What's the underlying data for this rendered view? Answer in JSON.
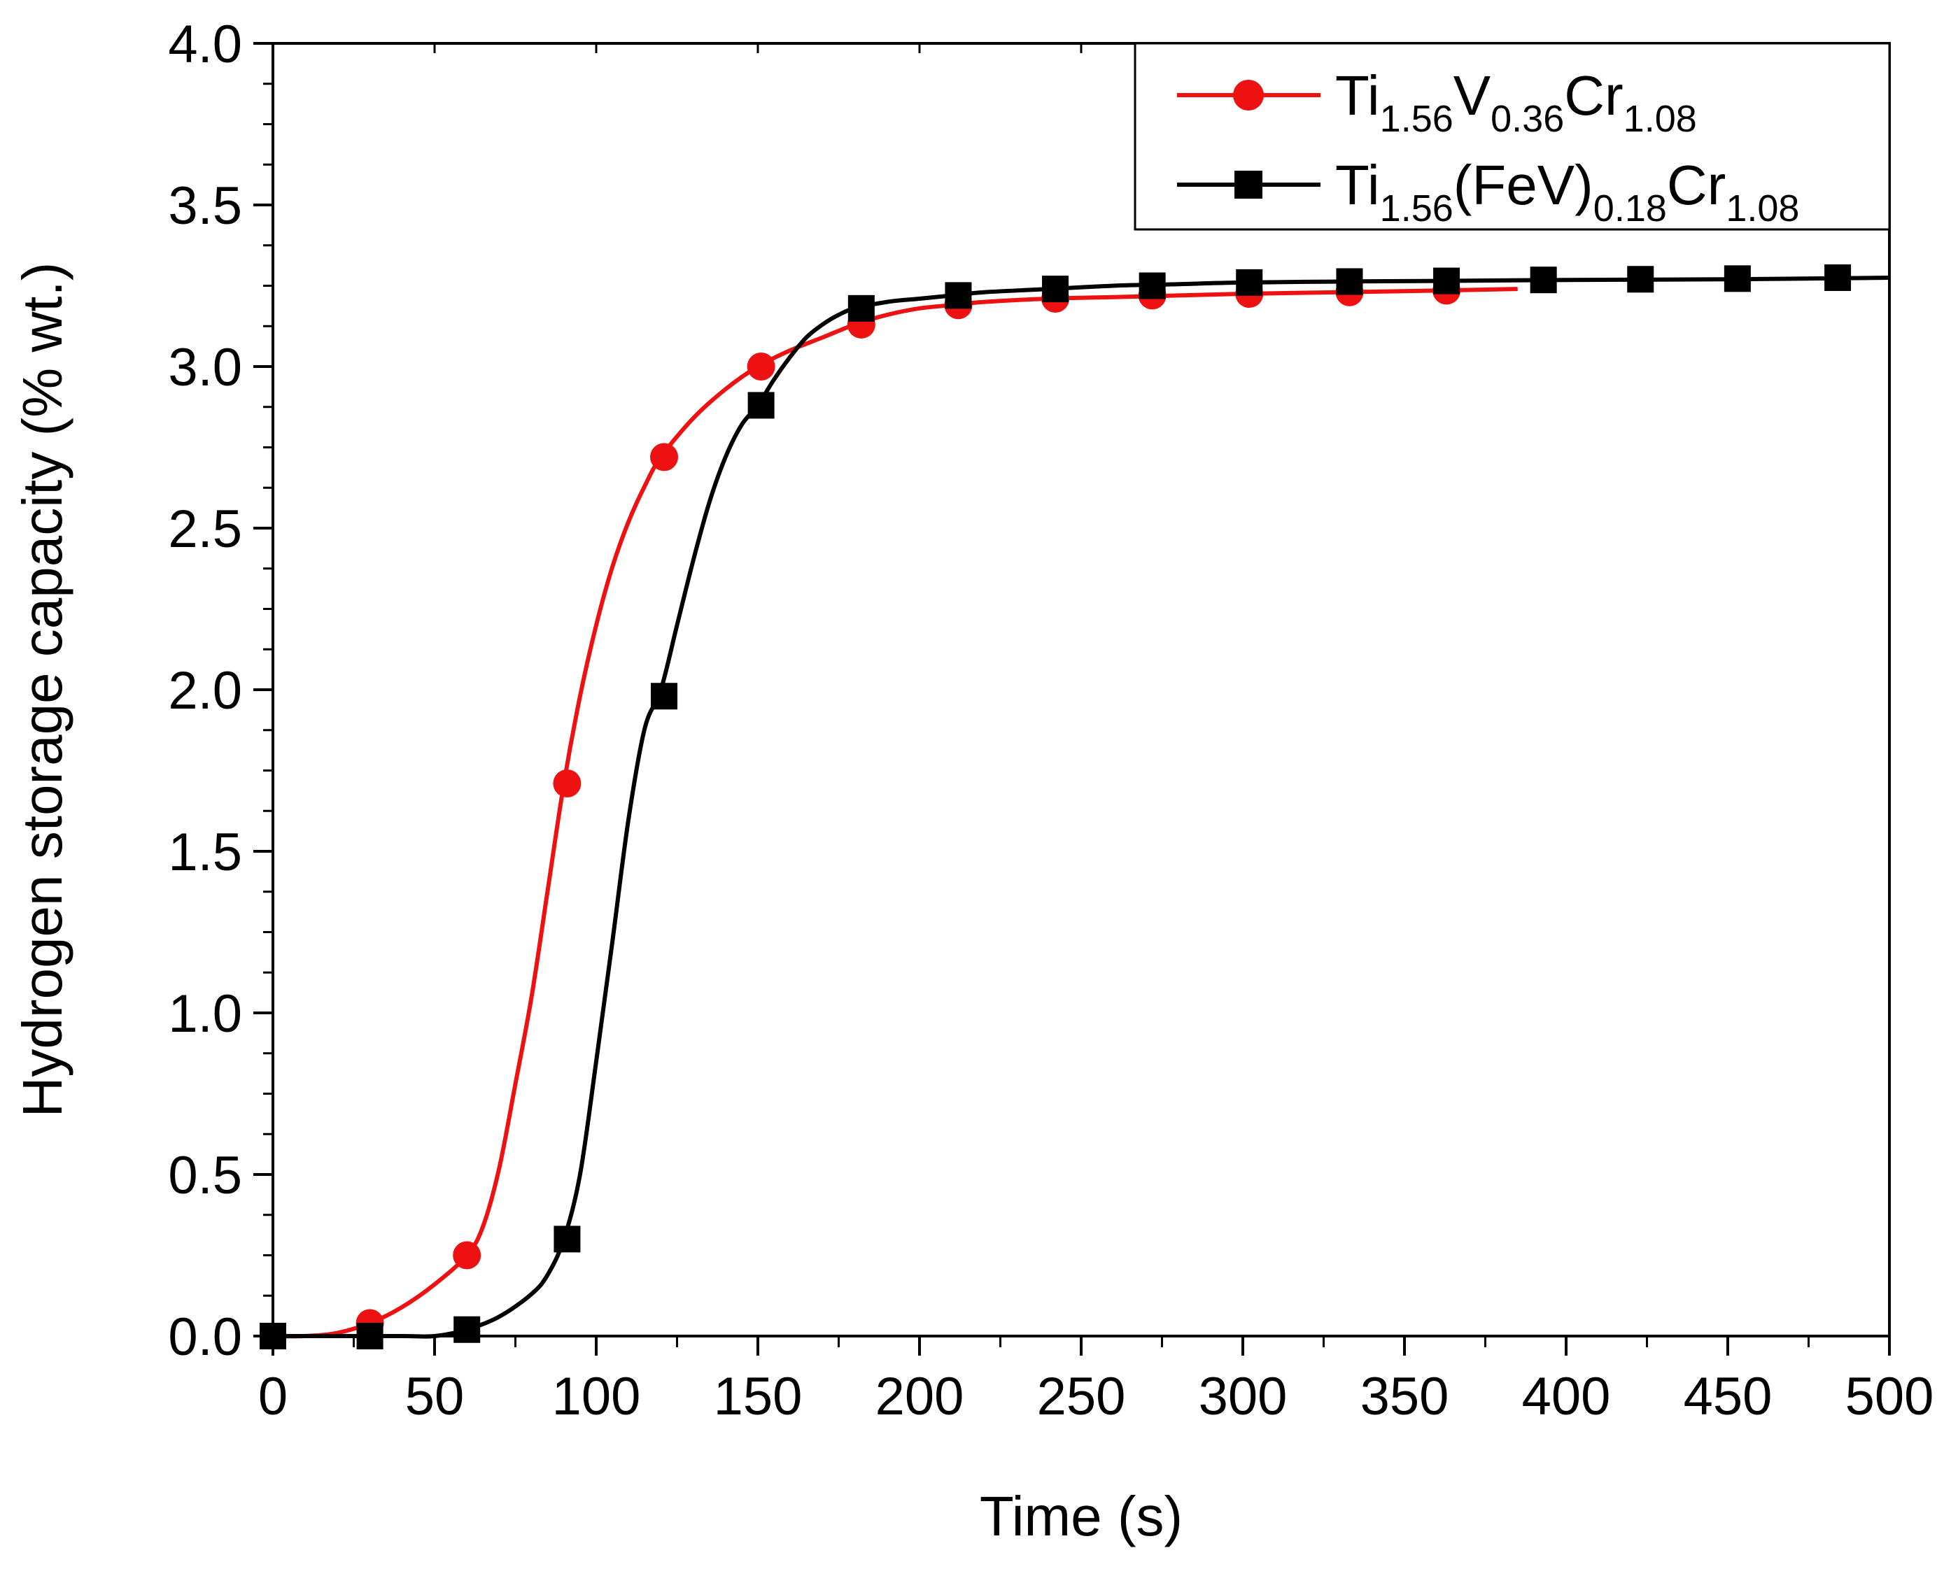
{
  "chart_data": {
    "type": "line",
    "title": "",
    "xlabel": "Time (s)",
    "ylabel": "Hydrogen storage capacity (% wt.)",
    "xlim": [
      0,
      500
    ],
    "ylim": [
      0.0,
      4.0
    ],
    "x_ticks": [
      "0",
      "50",
      "100",
      "150",
      "200",
      "250",
      "300",
      "350",
      "400",
      "450",
      "500"
    ],
    "y_ticks": [
      "0.0",
      "0.5",
      "1.0",
      "1.5",
      "2.0",
      "2.5",
      "3.0",
      "3.5",
      "4.0"
    ],
    "legend_position": "top-right",
    "series": [
      {
        "name": "Ti1.56V0.36Cr1.08",
        "legend_parts": [
          {
            "text": "Ti",
            "sub": false
          },
          {
            "text": "1.56",
            "sub": true
          },
          {
            "text": "V",
            "sub": false
          },
          {
            "text": "0.36",
            "sub": true
          },
          {
            "text": "Cr",
            "sub": false
          },
          {
            "text": "1.08",
            "sub": true
          }
        ],
        "color": "#ee1111",
        "marker": "circle",
        "curve_x": [
          0,
          10,
          20,
          30,
          40,
          50,
          60,
          65,
          70,
          75,
          80,
          85,
          90,
          95,
          100,
          105,
          110,
          115,
          120,
          130,
          140,
          150,
          160,
          170,
          180,
          190,
          200,
          210,
          220,
          240,
          260,
          280,
          300,
          330,
          360,
          385
        ],
        "curve_y": [
          0.0,
          0.0,
          0.01,
          0.04,
          0.09,
          0.16,
          0.25,
          0.34,
          0.52,
          0.78,
          1.05,
          1.38,
          1.71,
          1.98,
          2.2,
          2.38,
          2.52,
          2.63,
          2.72,
          2.84,
          2.93,
          3.0,
          3.05,
          3.09,
          3.13,
          3.16,
          3.18,
          3.19,
          3.2,
          3.21,
          3.215,
          3.22,
          3.225,
          3.23,
          3.235,
          3.24
        ],
        "marker_x": [
          30,
          60,
          91,
          121,
          151,
          182,
          212,
          242,
          272,
          302,
          333,
          363
        ],
        "marker_y": [
          0.04,
          0.25,
          1.71,
          2.72,
          3.0,
          3.13,
          3.19,
          3.21,
          3.22,
          3.225,
          3.23,
          3.235
        ]
      },
      {
        "name": "Ti1.56(FeV)0.18Cr1.08",
        "legend_parts": [
          {
            "text": "Ti",
            "sub": false
          },
          {
            "text": "1.56",
            "sub": true
          },
          {
            "text": "(FeV)",
            "sub": false
          },
          {
            "text": "0.18",
            "sub": true
          },
          {
            "text": "Cr",
            "sub": false
          },
          {
            "text": "1.08",
            "sub": true
          }
        ],
        "color": "#000000",
        "marker": "square",
        "curve_x": [
          0,
          20,
          40,
          50,
          60,
          70,
          80,
          85,
          90,
          95,
          100,
          105,
          110,
          115,
          120,
          125,
          130,
          135,
          140,
          145,
          150,
          155,
          160,
          165,
          170,
          175,
          180,
          190,
          200,
          210,
          220,
          240,
          260,
          280,
          300,
          330,
          360,
          400,
          450,
          500
        ],
        "curve_y": [
          0.0,
          0.0,
          0.0,
          0.0,
          0.02,
          0.06,
          0.13,
          0.19,
          0.3,
          0.5,
          0.85,
          1.22,
          1.6,
          1.88,
          2.0,
          2.2,
          2.4,
          2.58,
          2.72,
          2.82,
          2.88,
          2.96,
          3.03,
          3.09,
          3.13,
          3.16,
          3.18,
          3.2,
          3.21,
          3.22,
          3.23,
          3.24,
          3.25,
          3.255,
          3.26,
          3.263,
          3.265,
          3.268,
          3.27,
          3.275
        ],
        "marker_x": [
          0,
          30,
          60,
          91,
          121,
          151,
          182,
          212,
          242,
          272,
          302,
          333,
          363,
          393,
          423,
          453,
          484
        ],
        "marker_y": [
          0.0,
          0.0,
          0.02,
          0.3,
          1.98,
          2.88,
          3.18,
          3.22,
          3.24,
          3.25,
          3.26,
          3.263,
          3.265,
          3.268,
          3.27,
          3.272,
          3.275
        ]
      }
    ]
  }
}
